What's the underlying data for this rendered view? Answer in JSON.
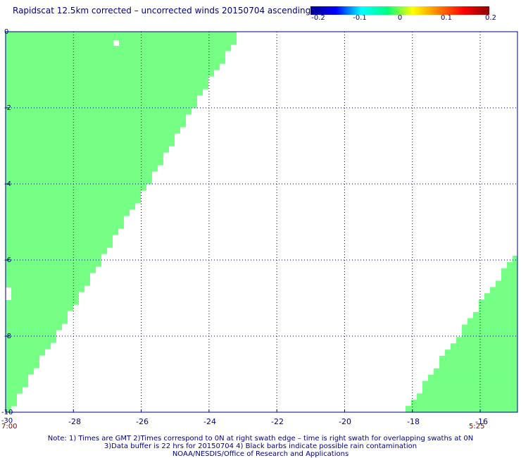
{
  "title": "Rapidscat 12.5km corrected – uncorrected winds 20150704 ascending",
  "colorbar": {
    "stops": [
      "#00008b",
      "#0000ff",
      "#00ffff",
      "#00ff80",
      "#ffff00",
      "#ff8000",
      "#ff0000",
      "#8b0000"
    ],
    "ticks": [
      "-0.2",
      "-0.1",
      "0",
      "0.1",
      "0.2"
    ],
    "range": [
      -0.2,
      0.2
    ]
  },
  "map": {
    "lon_ticks": [
      "-30",
      "-28",
      "-26",
      "-24",
      "-22",
      "-20",
      "-18",
      "-16"
    ],
    "lat_ticks": [
      "0",
      "-2",
      "-4",
      "-6",
      "-8",
      "-10"
    ],
    "lon_range": [
      -30,
      -14.9
    ],
    "lat_range": [
      -10,
      0
    ],
    "swath_color": "#75ff85",
    "grid_color": "#000080",
    "grid_style": "dotted"
  },
  "times": {
    "left": "7:00",
    "right": "5:25"
  },
  "notes": {
    "line1": "Note: 1) Times are GMT 2)Times correspond to 0N at right swath edge – time is right swath for overlapping swaths at 0N",
    "line2": "3)Data buffer is 22 hrs for 20150704 4) Black barbs indicate possible rain contamination",
    "line3": "NOAA/NESDIS/Office of Research and Applications"
  }
}
